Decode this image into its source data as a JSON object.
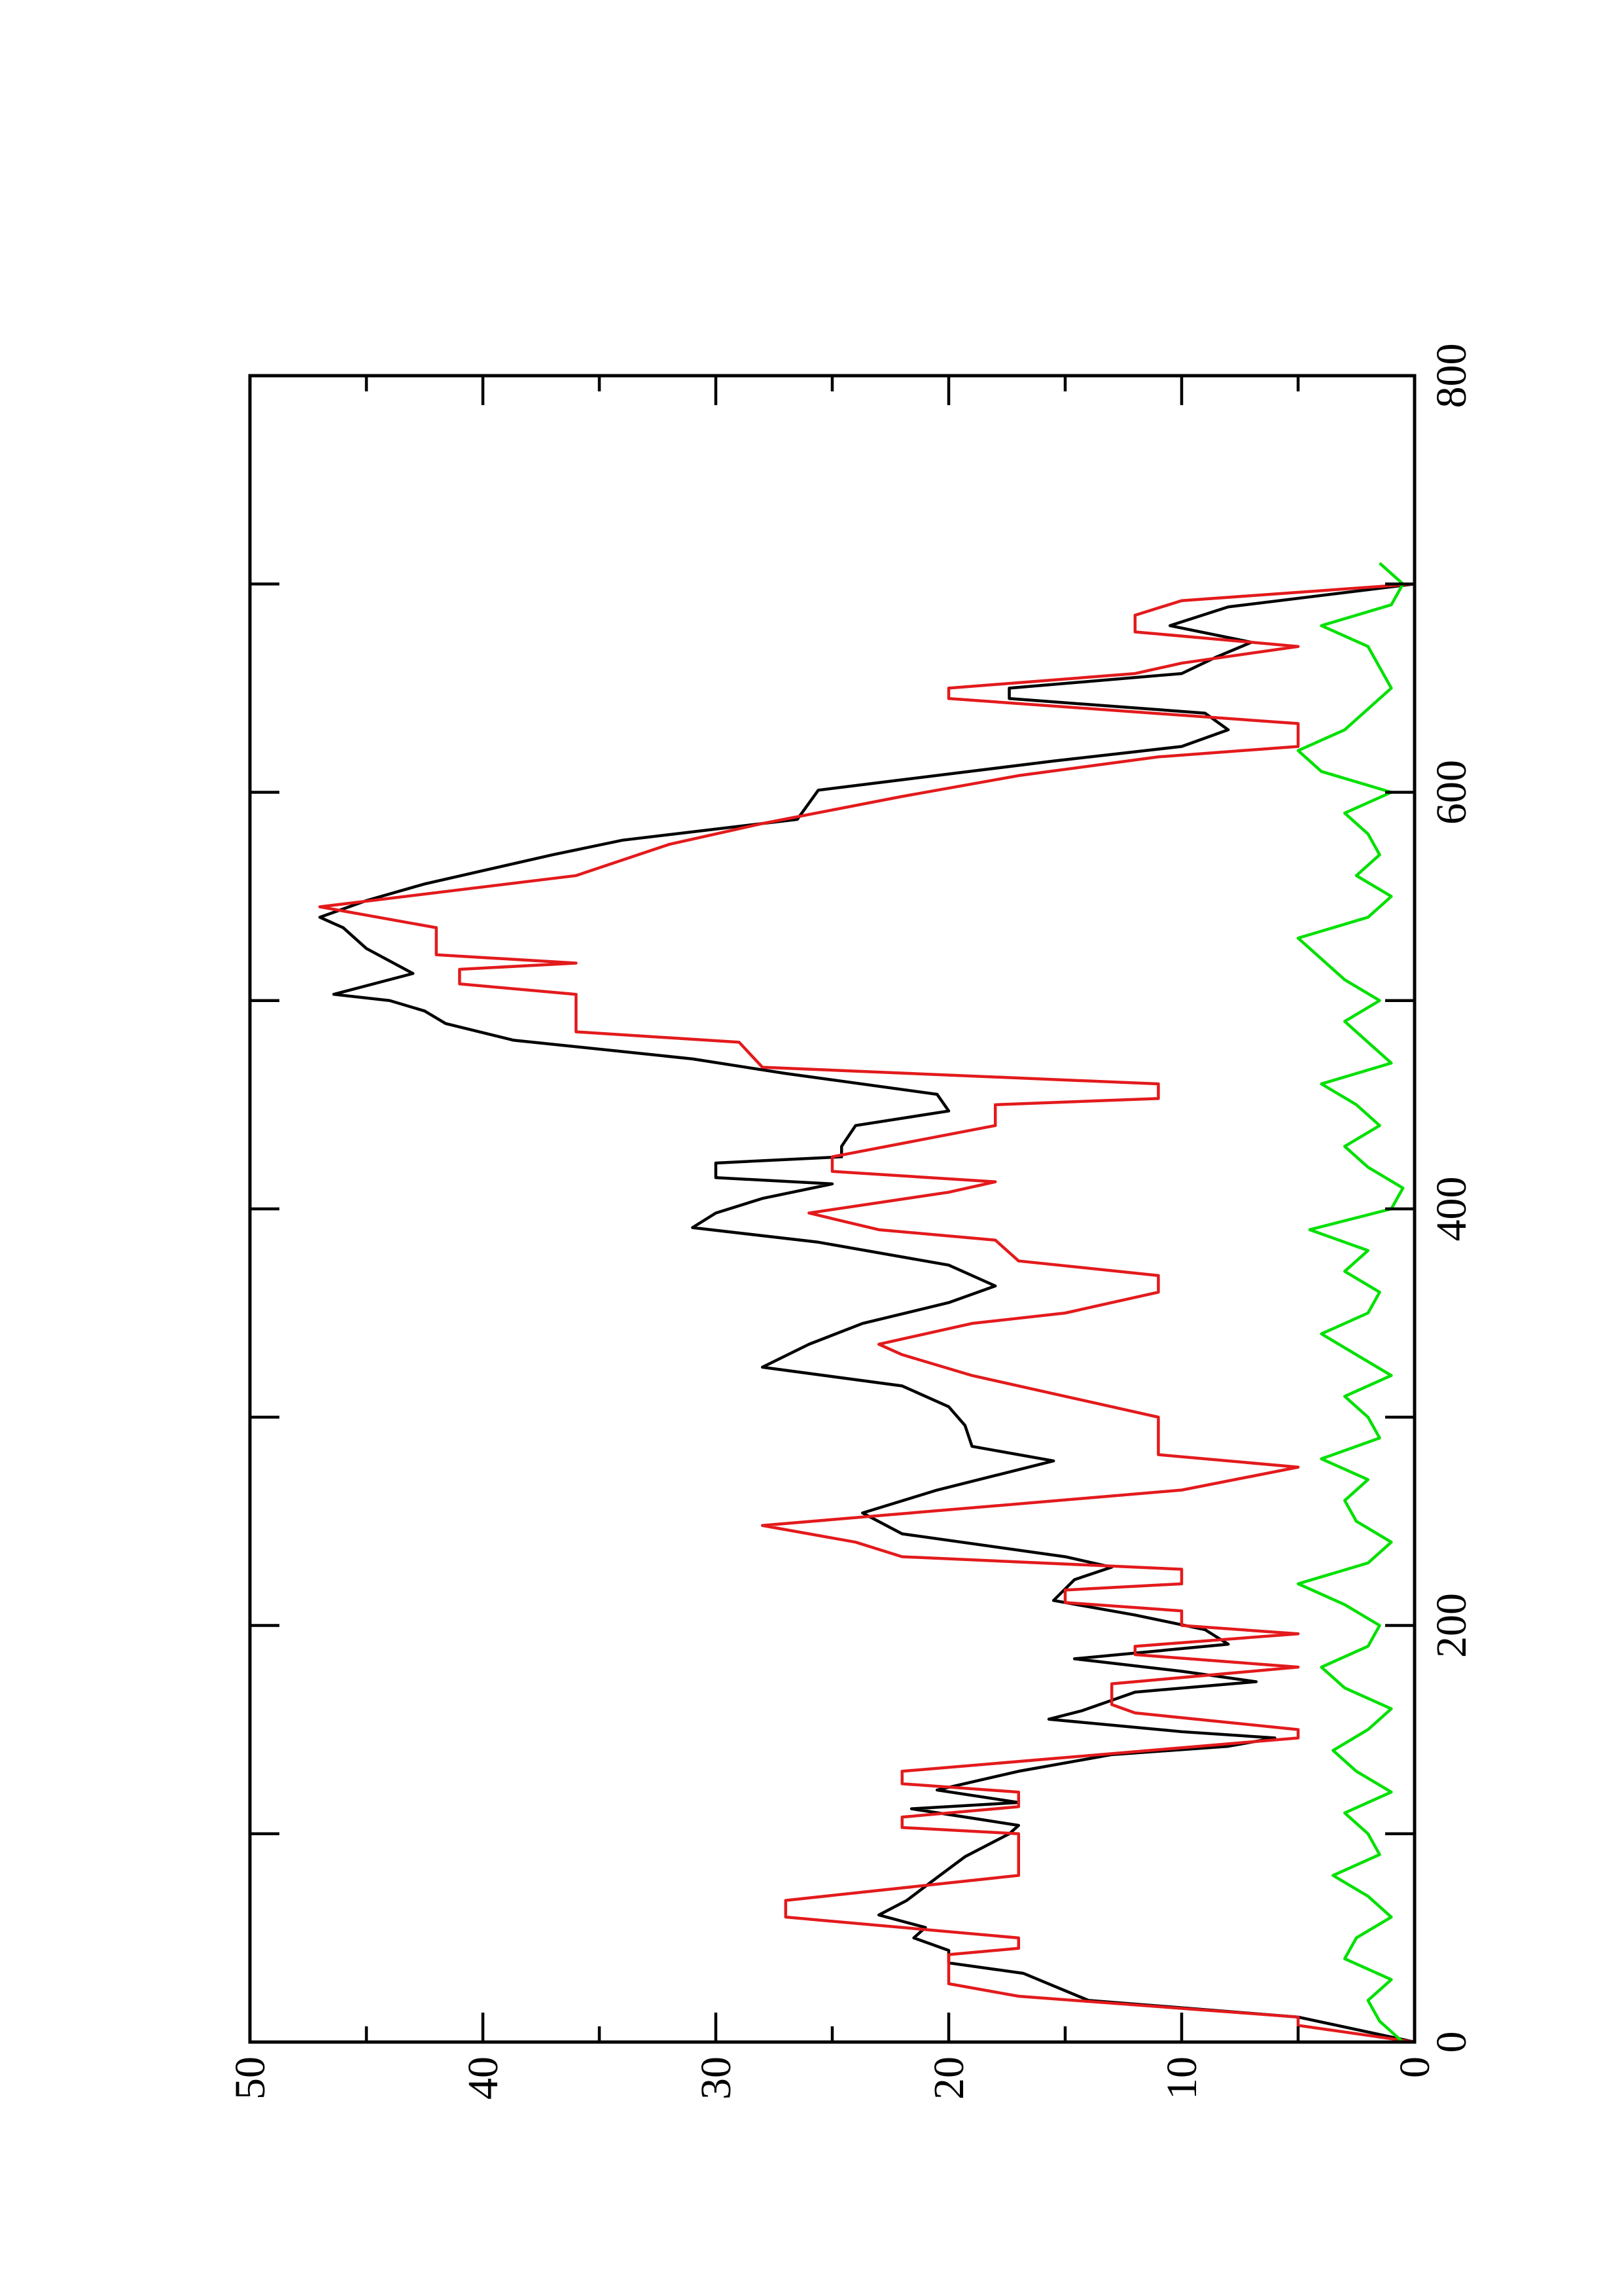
{
  "chart_data": {
    "type": "line",
    "orientation": "rotated-90",
    "xlim": [
      0,
      800
    ],
    "xticks": [
      0,
      200,
      400,
      600,
      800
    ],
    "xminorticks": [
      100,
      300,
      500,
      700
    ],
    "ylim": [
      0,
      50
    ],
    "yticks": [
      0,
      10,
      20,
      30,
      40,
      50
    ],
    "yminorticks": [
      5,
      15,
      25,
      35,
      45
    ],
    "series": [
      {
        "color": "#000000",
        "x": [
          0,
          12,
          20,
          33,
          38,
          44,
          50,
          55,
          61,
          68,
          79,
          89,
          100,
          104,
          107,
          112,
          115,
          121,
          130,
          138,
          142,
          146,
          149,
          155,
          159,
          168,
          173,
          178,
          184,
          191,
          198,
          205,
          212,
          222,
          228,
          233,
          244,
          254,
          265,
          272,
          279,
          286,
          296,
          305,
          315,
          324,
          335,
          345,
          355,
          363,
          373,
          384,
          391,
          398,
          405,
          412,
          415,
          422,
          425,
          430,
          440,
          447,
          455,
          465,
          472,
          481,
          489,
          495,
          500,
          503,
          513,
          525,
          535,
          540,
          548,
          556,
          570,
          577,
          587,
          601,
          606,
          615,
          622,
          630,
          638,
          645,
          650,
          657,
          665,
          672,
          680,
          689,
          700
        ],
        "values": [
          0,
          5,
          14,
          16.8,
          20,
          20,
          21.5,
          21,
          23,
          21.8,
          20.5,
          19.3,
          17.4,
          17,
          18.7,
          21.6,
          17,
          20.5,
          17,
          13,
          8,
          6,
          10,
          15.7,
          14.3,
          12,
          6.8,
          10,
          14.6,
          8,
          9,
          12,
          15.5,
          14.6,
          13,
          15,
          22,
          23.7,
          20.5,
          18,
          15.5,
          19,
          19.3,
          20,
          22,
          28,
          26,
          23.7,
          20,
          18,
          20,
          25.6,
          31,
          30,
          28,
          25,
          30,
          30,
          24.6,
          24.6,
          24,
          20,
          20.5,
          27,
          31,
          38.7,
          41.6,
          42.5,
          44,
          46.4,
          43,
          45,
          46,
          47,
          45,
          42.5,
          37,
          34,
          26.5,
          25.6,
          22,
          15.5,
          10,
          8,
          9,
          17.4,
          17.4,
          10,
          8.5,
          7,
          10.5,
          8,
          0
        ]
      },
      {
        "color": "#e31a1c",
        "x": [
          0,
          8,
          12,
          22,
          28,
          42,
          45,
          50,
          60,
          68,
          80,
          100,
          103,
          108,
          113,
          120,
          124,
          130,
          146,
          150,
          158,
          162,
          172,
          180,
          186,
          190,
          196,
          200,
          207,
          211,
          217,
          220,
          227,
          233,
          240,
          248,
          265,
          276,
          282,
          300,
          305,
          320,
          330,
          335,
          340,
          345,
          350,
          355,
          360,
          368,
          375,
          385,
          390,
          398,
          408,
          413,
          418,
          425,
          440,
          450,
          453,
          460,
          468,
          480,
          485,
          503,
          508,
          515,
          518,
          522,
          535,
          545,
          560,
          575,
          585,
          598,
          608,
          617,
          622,
          633,
          645,
          650,
          657,
          662,
          670,
          677,
          685,
          692,
          700,
          715
        ],
        "values": [
          0,
          5,
          5,
          17,
          20,
          20,
          17,
          17,
          27,
          27,
          17,
          17,
          22,
          22,
          17,
          17,
          22,
          22,
          5,
          5,
          12,
          13,
          13,
          5,
          12,
          12,
          5,
          10,
          10,
          15,
          15,
          10,
          10,
          22,
          24,
          28,
          10,
          5,
          11,
          11,
          13,
          19,
          22,
          23,
          21,
          19,
          15,
          13,
          11,
          11,
          17,
          18,
          23,
          26,
          20,
          18,
          25,
          25,
          18,
          18,
          11,
          11,
          28,
          29,
          36,
          36,
          41,
          41,
          36,
          42,
          42,
          47,
          36,
          32,
          28,
          22,
          17,
          11,
          5,
          5,
          20,
          20,
          12,
          10,
          5,
          12,
          12,
          10,
          0,
          0
        ]
      },
      {
        "color": "#00e000",
        "x": [
          0,
          10,
          20,
          30,
          40,
          50,
          60,
          70,
          80,
          90,
          100,
          110,
          120,
          130,
          140,
          150,
          160,
          170,
          180,
          190,
          200,
          210,
          220,
          230,
          240,
          250,
          260,
          270,
          280,
          290,
          300,
          310,
          320,
          330,
          340,
          350,
          360,
          370,
          380,
          390,
          400,
          410,
          420,
          430,
          440,
          450,
          460,
          470,
          480,
          490,
          500,
          510,
          520,
          530,
          540,
          550,
          560,
          570,
          580,
          590,
          600,
          610,
          620,
          630,
          640,
          650,
          660,
          670,
          680,
          690,
          700,
          710
        ],
        "values": [
          0.5,
          1.5,
          2,
          1,
          3,
          2.5,
          1,
          2,
          3.5,
          1.5,
          2,
          3,
          1,
          2.5,
          3.5,
          2,
          1,
          3,
          4,
          2,
          1.5,
          3,
          5,
          2,
          1,
          2.5,
          3,
          2,
          4,
          1.5,
          2,
          3,
          1,
          2.5,
          4,
          2,
          1.5,
          3,
          2,
          4.5,
          1,
          0.5,
          2,
          3,
          1.5,
          2.5,
          4,
          1,
          2,
          3,
          1.5,
          3,
          4,
          5,
          2,
          1,
          2.5,
          1.5,
          2,
          3,
          1,
          4,
          5,
          3,
          2,
          1,
          1.5,
          2,
          4,
          1,
          0.5,
          1.5
        ]
      }
    ]
  }
}
